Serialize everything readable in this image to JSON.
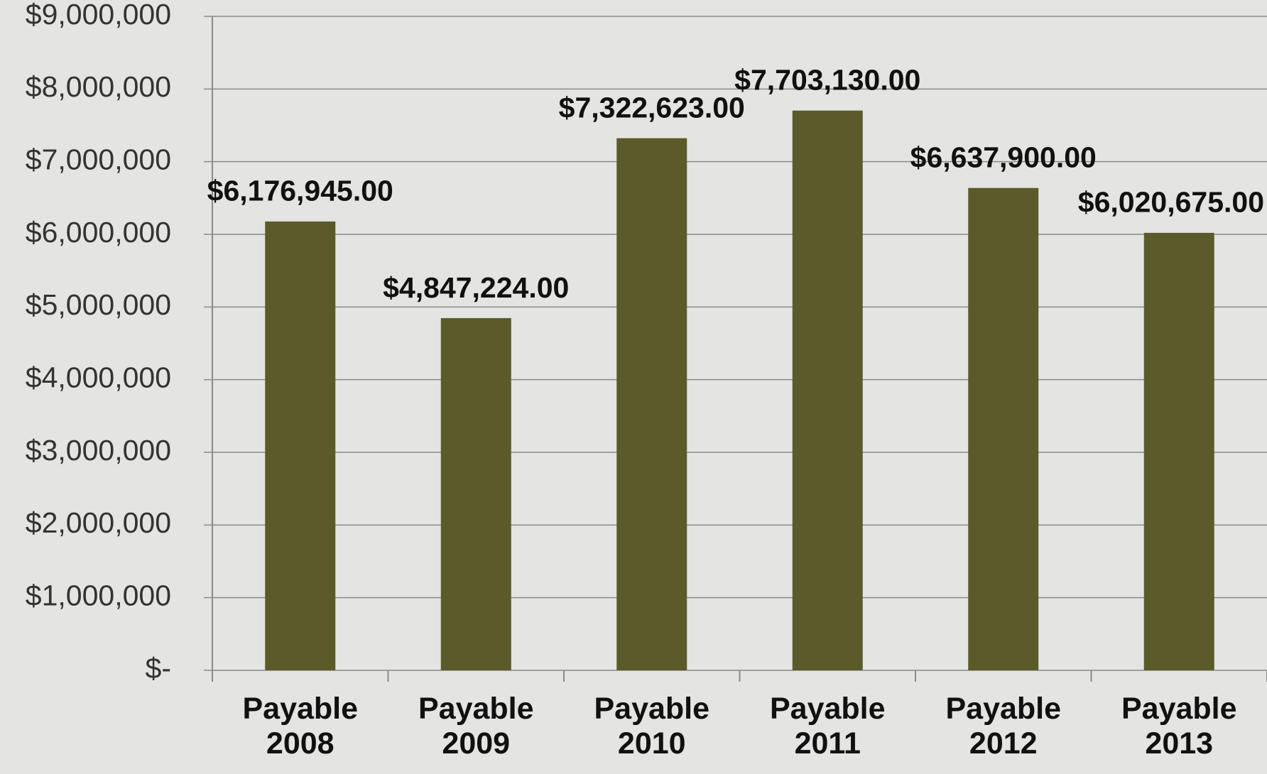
{
  "chart_data": {
    "type": "bar",
    "categories": [
      "Payable 2008",
      "Payable 2009",
      "Payable 2010",
      "Payable 2011",
      "Payable 2012",
      "Payable 2013"
    ],
    "values": [
      6176945,
      4847224,
      7322623,
      7703130,
      6637900,
      6020675
    ],
    "value_labels": [
      "$6,176,945.00",
      "$4,847,224.00",
      "$7,322,623.00",
      "$7,703,130.00",
      "$6,637,900.00",
      "$6,020,675.00"
    ],
    "color": "#5b5a2b",
    "ylim": [
      0,
      9000000
    ],
    "yticks": [
      {
        "value": 0,
        "label": "$-"
      },
      {
        "value": 1000000,
        "label": "$1,000,000"
      },
      {
        "value": 2000000,
        "label": "$2,000,000"
      },
      {
        "value": 3000000,
        "label": "$3,000,000"
      },
      {
        "value": 4000000,
        "label": "$4,000,000"
      },
      {
        "value": 5000000,
        "label": "$5,000,000"
      },
      {
        "value": 6000000,
        "label": "$6,000,000"
      },
      {
        "value": 7000000,
        "label": "$7,000,000"
      },
      {
        "value": 8000000,
        "label": "$8,000,000"
      },
      {
        "value": 9000000,
        "label": "$9,000,000"
      }
    ],
    "grid": true
  }
}
